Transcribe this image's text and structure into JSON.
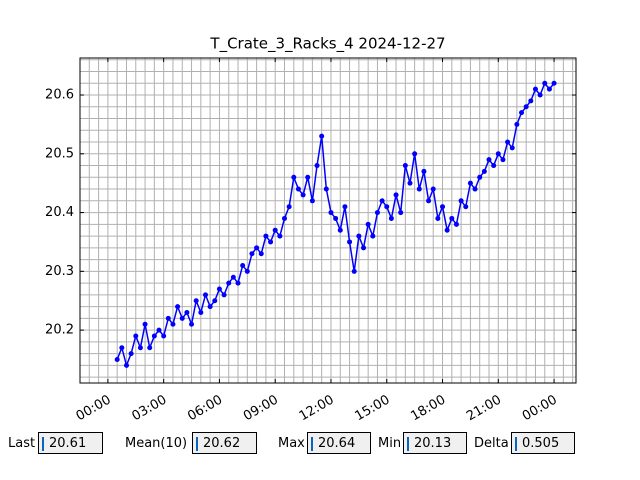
{
  "chart_data": {
    "type": "line",
    "title": "T_Crate_3_Racks_4 2024-12-27",
    "x": [
      0.5,
      0.75,
      1,
      1.25,
      1.5,
      1.75,
      2,
      2.25,
      2.5,
      2.75,
      3,
      3.25,
      3.5,
      3.75,
      4,
      4.25,
      4.5,
      4.75,
      5,
      5.25,
      5.5,
      5.75,
      6,
      6.25,
      6.5,
      6.75,
      7,
      7.25,
      7.5,
      7.75,
      8,
      8.25,
      8.5,
      8.75,
      9,
      9.25,
      9.5,
      9.75,
      10,
      10.25,
      10.5,
      10.75,
      11,
      11.25,
      11.5,
      11.75,
      12,
      12.25,
      12.5,
      12.75,
      13,
      13.25,
      13.5,
      13.75,
      14,
      14.25,
      14.5,
      14.75,
      15,
      15.25,
      15.5,
      15.75,
      16,
      16.25,
      16.5,
      16.75,
      17,
      17.25,
      17.5,
      17.75,
      18,
      18.25,
      18.5,
      18.75,
      19,
      19.25,
      19.5,
      19.75,
      20,
      20.25,
      20.5,
      20.75,
      21,
      21.25,
      21.5,
      21.75,
      22,
      22.25,
      22.5,
      22.75,
      23,
      23.25,
      23.5,
      23.75,
      24
    ],
    "series": [
      {
        "color": "#0000ff",
        "values": [
          20.15,
          20.17,
          20.14,
          20.16,
          20.19,
          20.17,
          20.21,
          20.17,
          20.19,
          20.2,
          20.19,
          20.22,
          20.21,
          20.24,
          20.22,
          20.23,
          20.21,
          20.25,
          20.23,
          20.26,
          20.24,
          20.25,
          20.27,
          20.26,
          20.28,
          20.29,
          20.28,
          20.31,
          20.3,
          20.33,
          20.34,
          20.33,
          20.36,
          20.35,
          20.37,
          20.36,
          20.39,
          20.41,
          20.46,
          20.44,
          20.43,
          20.46,
          20.42,
          20.48,
          20.53,
          20.44,
          20.4,
          20.39,
          20.37,
          20.41,
          20.35,
          20.3,
          20.36,
          20.34,
          20.38,
          20.36,
          20.4,
          20.42,
          20.41,
          20.39,
          20.43,
          20.4,
          20.48,
          20.45,
          20.5,
          20.44,
          20.47,
          20.42,
          20.44,
          20.39,
          20.41,
          20.37,
          20.39,
          20.38,
          20.42,
          20.41,
          20.45,
          20.44,
          20.46,
          20.47,
          20.49,
          20.48,
          20.5,
          20.49,
          20.52,
          20.51,
          20.55,
          20.57,
          20.58,
          20.59,
          20.61,
          20.6,
          20.62,
          20.61,
          20.62
        ]
      }
    ],
    "xlim": [
      -1.5,
      25.18
    ],
    "ylim": [
      20.11,
      20.663
    ],
    "xticks": [
      {
        "value": 0,
        "label": "00:00"
      },
      {
        "value": 3,
        "label": "03:00"
      },
      {
        "value": 6,
        "label": "06:00"
      },
      {
        "value": 9,
        "label": "09:00"
      },
      {
        "value": 12,
        "label": "12:00"
      },
      {
        "value": 15,
        "label": "15:00"
      },
      {
        "value": 18,
        "label": "18:00"
      },
      {
        "value": 21,
        "label": "21:00"
      },
      {
        "value": 24,
        "label": "00:00"
      }
    ],
    "yticks": [
      20.2,
      20.3,
      20.4,
      20.5,
      20.6
    ],
    "xminor": [
      -1,
      -0.5,
      0,
      0.5,
      1,
      1.5,
      2,
      2.5,
      3,
      3.5,
      4,
      4.5,
      5,
      5.5,
      6,
      6.5,
      7,
      7.5,
      8,
      8.5,
      9,
      9.5,
      10,
      10.5,
      11,
      11.5,
      12,
      12.5,
      13,
      13.5,
      14,
      14.5,
      15,
      15.5,
      16,
      16.5,
      17,
      17.5,
      18,
      18.5,
      19,
      19.5,
      20,
      20.5,
      21,
      21.5,
      22,
      22.5,
      23,
      23.5,
      24,
      24.5,
      25
    ],
    "yminor": [
      20.12,
      20.14,
      20.16,
      20.18,
      20.2,
      20.22,
      20.24,
      20.26,
      20.28,
      20.3,
      20.32,
      20.34,
      20.36,
      20.38,
      20.4,
      20.42,
      20.44,
      20.46,
      20.48,
      20.5,
      20.52,
      20.54,
      20.56,
      20.58,
      20.6,
      20.62,
      20.64,
      20.66
    ],
    "grid": true
  },
  "stats": [
    {
      "label": "Last",
      "value": 20.61
    },
    {
      "label": "Mean(10)",
      "value": 20.62
    },
    {
      "label": "Max",
      "value": 20.64
    },
    {
      "label": "Min",
      "value": 20.13
    },
    {
      "label": "Delta",
      "value": 0.505
    }
  ]
}
